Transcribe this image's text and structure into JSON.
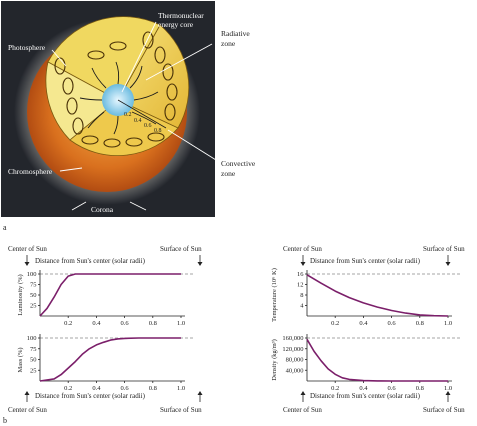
{
  "panel_a": {
    "letter": "a",
    "labels": {
      "core": [
        "Thermonuclear",
        "energy core"
      ],
      "radiative": [
        "Radiative",
        "zone"
      ],
      "photosphere": "Photosphere",
      "chromosphere": "Chromosphere",
      "corona": "Corona",
      "convective": [
        "Convective",
        "zone"
      ]
    },
    "radius_ticks": [
      "0.2",
      "0.4",
      "0.6",
      "0.8"
    ],
    "colors": {
      "panel_bg": "#22252b",
      "sun": "#e08a2a",
      "cut": "#f1d64a",
      "core": "#8fd0ea",
      "arrows": "#1a1a1a"
    }
  },
  "panel_b": {
    "letter": "b",
    "top_left_label": "Center of Sun",
    "top_right_label": "Surface of Sun",
    "axis_caption": "Distance from Sun's center (solar radii)",
    "bottom_left_label": "Center of Sun",
    "bottom_right_label": "Surface of Sun",
    "curve_color": "#7b1f6a"
  },
  "chart_data": [
    {
      "type": "line",
      "ylabel": "Luminosity (%)",
      "xlabel": "",
      "x_ticks": [
        "0.2",
        "0.4",
        "0.6",
        "0.8",
        "1.0"
      ],
      "y_ticks": [
        "25",
        "50",
        "75",
        "100"
      ],
      "xlim": [
        0,
        1.0
      ],
      "ylim": [
        0,
        100
      ],
      "x": [
        0.0,
        0.05,
        0.1,
        0.15,
        0.2,
        0.25,
        0.3,
        0.4,
        0.6,
        0.8,
        1.0
      ],
      "values": [
        0,
        18,
        45,
        75,
        95,
        100,
        100,
        100,
        100,
        100,
        100
      ]
    },
    {
      "type": "line",
      "ylabel": "Mass (%)",
      "xlabel": "",
      "x_ticks": [
        "0.2",
        "0.4",
        "0.6",
        "0.8",
        "1.0"
      ],
      "y_ticks": [
        "25",
        "50",
        "75",
        "100"
      ],
      "xlim": [
        0,
        1.0
      ],
      "ylim": [
        0,
        100
      ],
      "x": [
        0.0,
        0.1,
        0.15,
        0.2,
        0.25,
        0.3,
        0.35,
        0.4,
        0.45,
        0.5,
        0.55,
        0.6,
        0.7,
        0.8,
        1.0
      ],
      "values": [
        0,
        5,
        15,
        30,
        45,
        62,
        75,
        84,
        90,
        95,
        98,
        99,
        100,
        100,
        100
      ]
    },
    {
      "type": "line",
      "ylabel": "Temperature (10⁶ K)",
      "xlabel": "",
      "x_ticks": [
        "0.2",
        "0.4",
        "0.6",
        "0.8",
        "1.0"
      ],
      "y_ticks": [
        "4",
        "8",
        "12",
        "16"
      ],
      "xlim": [
        0,
        1.0
      ],
      "ylim": [
        0,
        16
      ],
      "x": [
        0.0,
        0.1,
        0.2,
        0.3,
        0.4,
        0.5,
        0.6,
        0.7,
        0.8,
        0.9,
        1.0
      ],
      "values": [
        15.7,
        12.5,
        9.5,
        7.0,
        5.0,
        3.4,
        2.1,
        1.1,
        0.4,
        0.1,
        0.0
      ]
    },
    {
      "type": "line",
      "ylabel": "Density (kg/m³)",
      "xlabel": "",
      "x_ticks": [
        "0.2",
        "0.4",
        "0.6",
        "0.8",
        "1.0"
      ],
      "y_ticks": [
        "40,000",
        "80,000",
        "120,000",
        "160,000"
      ],
      "xlim": [
        0,
        1.0
      ],
      "ylim": [
        0,
        160000
      ],
      "x": [
        0.0,
        0.05,
        0.1,
        0.15,
        0.2,
        0.25,
        0.3,
        0.4,
        0.5,
        0.6,
        0.8,
        1.0
      ],
      "values": [
        155000,
        110000,
        75000,
        45000,
        25000,
        12000,
        6000,
        1500,
        300,
        100,
        0,
        0
      ]
    }
  ]
}
